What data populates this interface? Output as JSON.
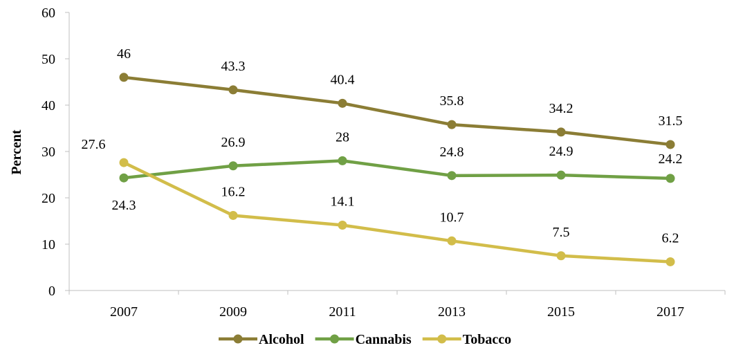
{
  "chart_data": {
    "type": "line",
    "title": "",
    "xlabel": "",
    "ylabel": "Percent",
    "ylim": [
      0,
      60
    ],
    "yticks": [
      0,
      10,
      20,
      30,
      40,
      50,
      60
    ],
    "grid": false,
    "legend_position": "bottom",
    "categories": [
      "2007",
      "2009",
      "2011",
      "2013",
      "2015",
      "2017"
    ],
    "series": [
      {
        "name": "Alcohol",
        "color": "#8b7d35",
        "values": [
          46,
          43.3,
          40.4,
          35.8,
          34.2,
          31.5
        ],
        "labels": [
          "46",
          "43.3",
          "40.4",
          "35.8",
          "34.2",
          "31.5"
        ]
      },
      {
        "name": "Cannabis",
        "color": "#70a045",
        "values": [
          24.3,
          26.9,
          28,
          24.8,
          24.9,
          24.2
        ],
        "labels": [
          "24.3",
          "26.9",
          "28",
          "24.8",
          "24.9",
          "24.2"
        ]
      },
      {
        "name": "Tobacco",
        "color": "#d2bd4a",
        "values": [
          27.6,
          16.2,
          14.1,
          10.7,
          7.5,
          6.2
        ],
        "labels": [
          "27.6",
          "16.2",
          "14.1",
          "10.7",
          "7.5",
          "6.2"
        ]
      }
    ]
  }
}
